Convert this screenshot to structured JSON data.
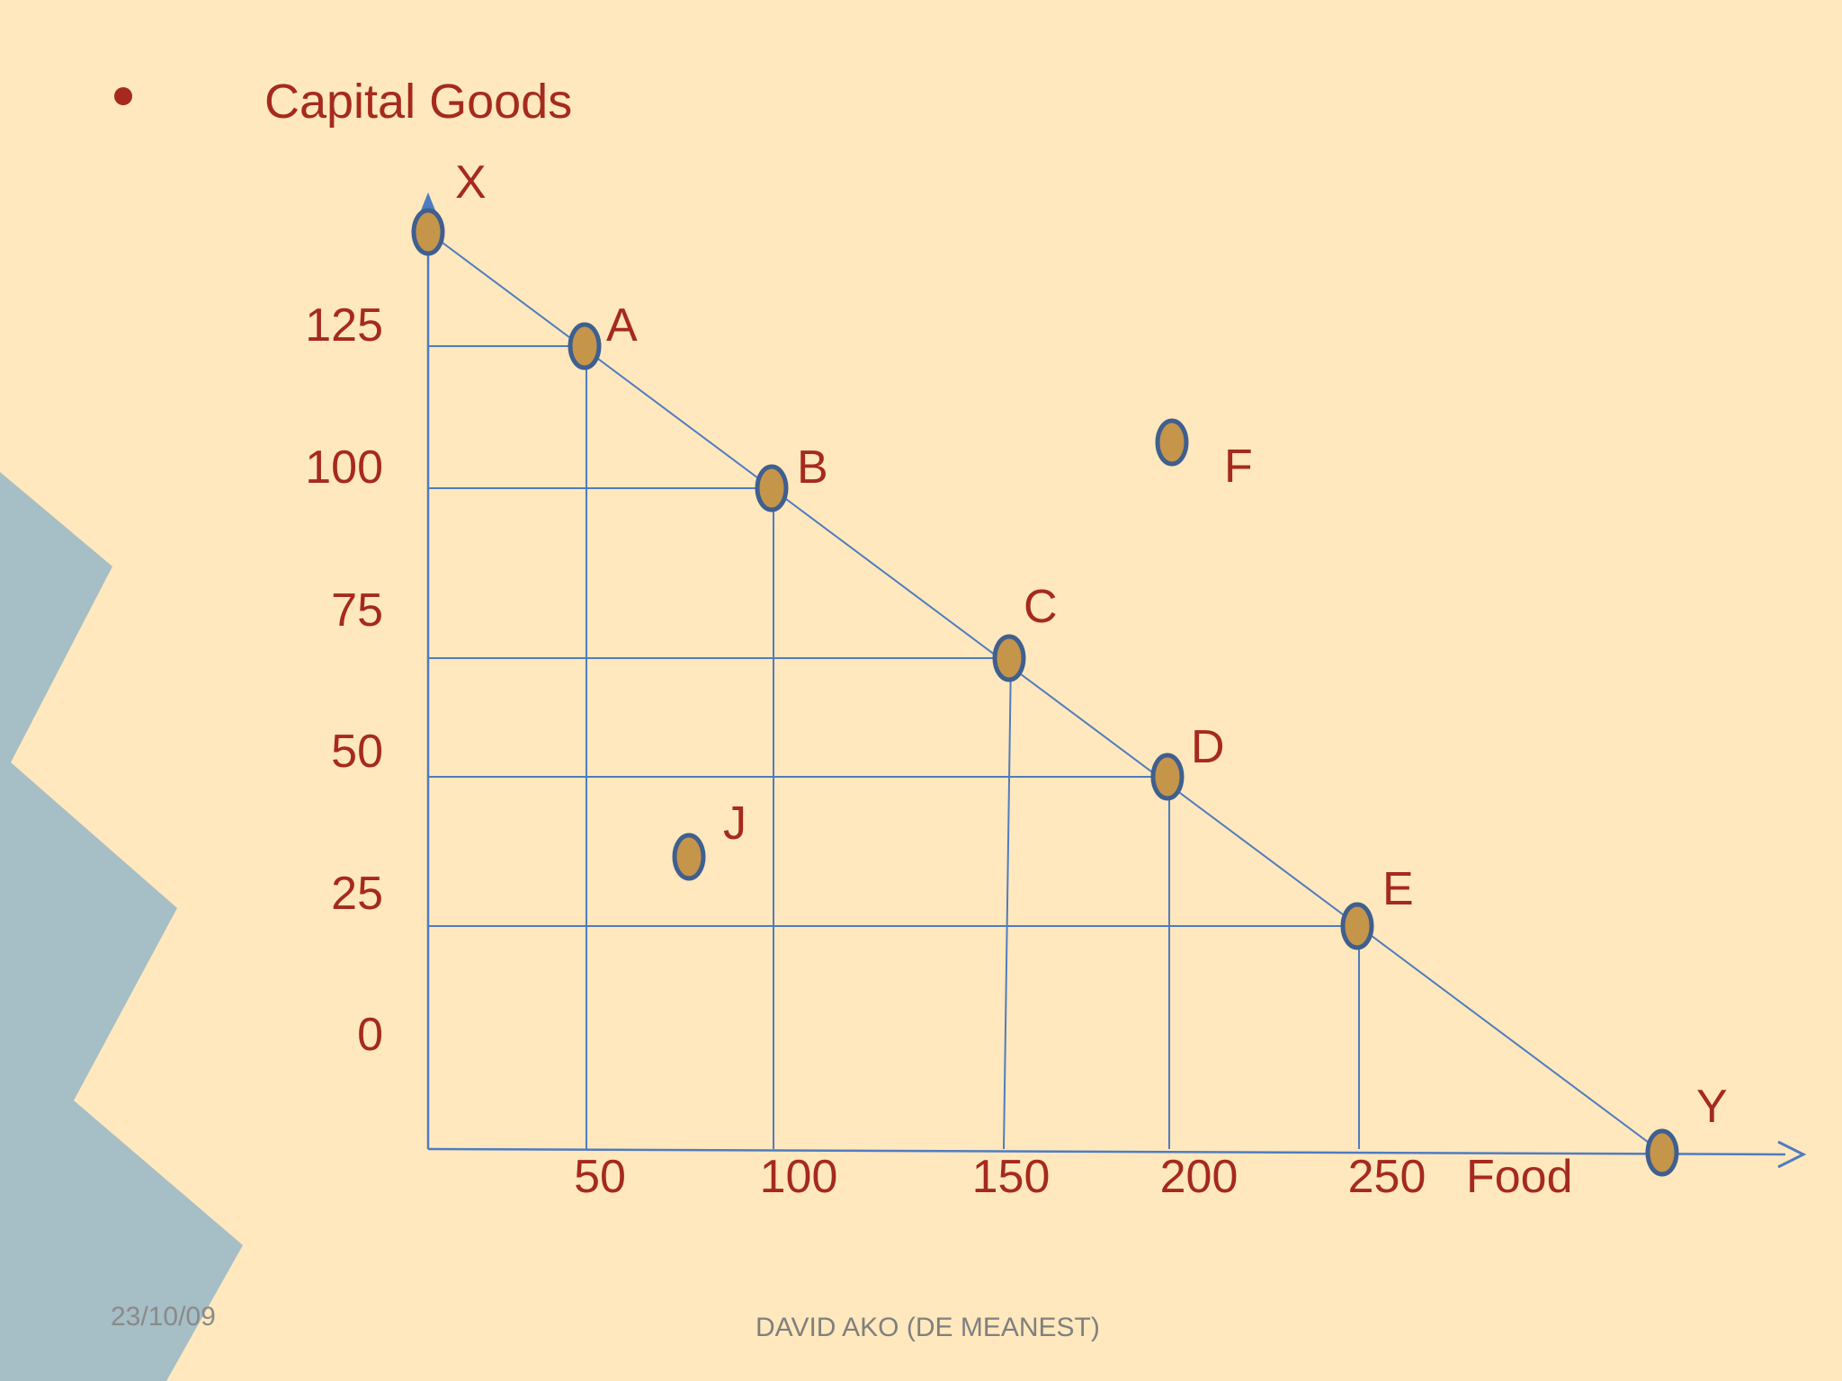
{
  "slide": {
    "title": "Capital Goods",
    "date": "23/10/09",
    "author": "DAVID AKO (DE MEANEST)"
  },
  "colors": {
    "background": "#ffe8bd",
    "accent_shape": "#a6bec5",
    "text": "#a52a1d",
    "lines": "#4f7cc0",
    "point_fill": "#c5954a",
    "point_stroke": "#3f5f8f"
  },
  "chart_data": {
    "type": "line",
    "title": "",
    "ylabel": "X",
    "xlabel": "Food",
    "y_ticks": [
      "0",
      "25",
      "50",
      "75",
      "100",
      "125"
    ],
    "x_ticks": [
      "50",
      "100",
      "150",
      "200",
      "250"
    ],
    "frontier_endpoints": [
      {
        "label": "X",
        "x": 0,
        "y": 145
      },
      {
        "label": "Y",
        "x": 350,
        "y": 0
      }
    ],
    "points": [
      {
        "label": "A",
        "x": 45,
        "y": 125,
        "on_frontier": true
      },
      {
        "label": "B",
        "x": 100,
        "y": 100,
        "on_frontier": true
      },
      {
        "label": "C",
        "x": 162,
        "y": 70,
        "on_frontier": true
      },
      {
        "label": "D",
        "x": 207,
        "y": 48,
        "on_frontier": true
      },
      {
        "label": "E",
        "x": 260,
        "y": 22,
        "on_frontier": true
      },
      {
        "label": "F",
        "x": 208,
        "y": 108,
        "on_frontier": false
      },
      {
        "label": "J",
        "x": 73,
        "y": 36,
        "on_frontier": false
      }
    ],
    "grid": "guide lines from frontier points to both axes",
    "legend": "none"
  }
}
